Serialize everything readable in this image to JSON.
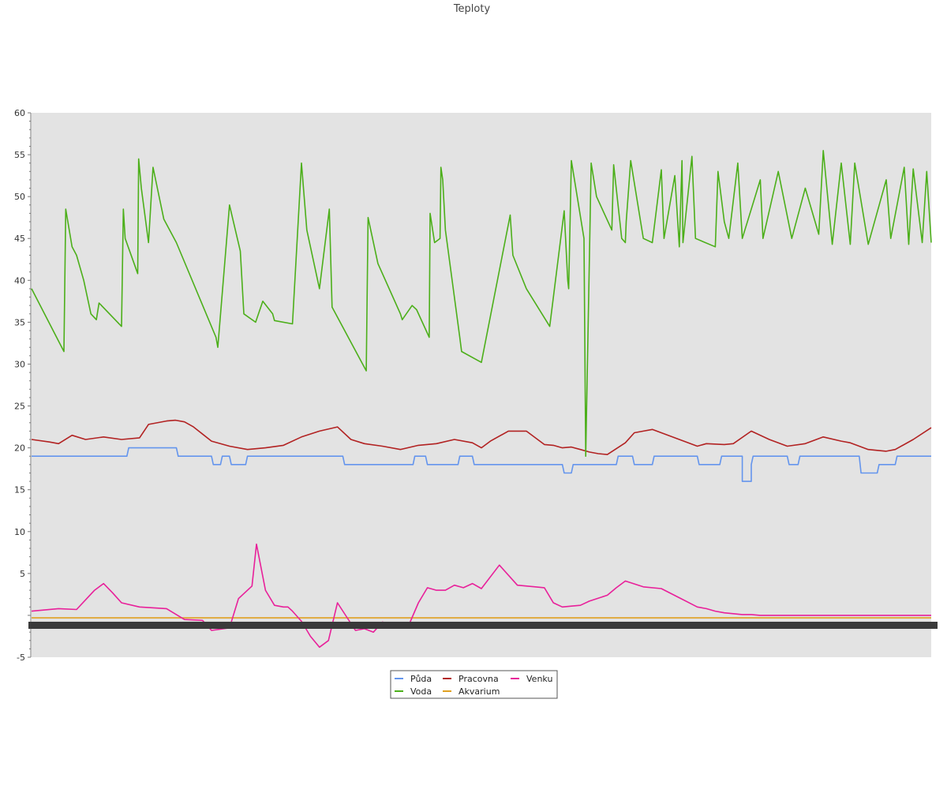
{
  "chart_data": {
    "type": "line",
    "title": "Teploty",
    "xlabel": "",
    "ylabel": "",
    "ylim": [
      -5,
      60
    ],
    "yticks": [
      -5,
      5,
      10,
      15,
      20,
      25,
      30,
      35,
      40,
      45,
      50,
      55,
      60
    ],
    "grid": false,
    "legend_position": "bottom",
    "background": "#e3e3e3",
    "series": [
      {
        "name": "Půda",
        "color": "#6495ed",
        "x": [
          0,
          0.106,
          0.108,
          0.161,
          0.163,
          0.2,
          0.202,
          0.21,
          0.212,
          0.22,
          0.222,
          0.238,
          0.24,
          0.346,
          0.348,
          0.424,
          0.426,
          0.438,
          0.44,
          0.474,
          0.476,
          0.49,
          0.492,
          0.59,
          0.592,
          0.6,
          0.602,
          0.65,
          0.652,
          0.668,
          0.67,
          0.69,
          0.692,
          0.74,
          0.742,
          0.765,
          0.767,
          0.788,
          0.79,
          0.79,
          0.8,
          0.8,
          0.802,
          0.84,
          0.842,
          0.852,
          0.854,
          0.92,
          0.922,
          0.94,
          0.942,
          0.96,
          0.962,
          1
        ],
        "y": [
          19,
          19,
          20,
          20,
          19,
          19,
          18,
          18,
          19,
          19,
          18,
          18,
          19,
          19,
          18,
          18,
          19,
          19,
          18,
          18,
          19,
          19,
          18,
          18,
          17,
          17,
          18,
          18,
          19,
          19,
          18,
          18,
          19,
          19,
          18,
          18,
          19,
          19,
          19,
          16,
          16,
          18,
          19,
          19,
          18,
          18,
          19,
          19,
          17,
          17,
          18,
          18,
          19,
          19
        ]
      },
      {
        "name": "Voda",
        "color": "#4caf1a",
        "x": [
          0,
          0.036,
          0.038,
          0.045,
          0.05,
          0.058,
          0.066,
          0.072,
          0.075,
          0.1,
          0.102,
          0.104,
          0.118,
          0.119,
          0.122,
          0.13,
          0.135,
          0.147,
          0.161,
          0.205,
          0.207,
          0.22,
          0.232,
          0.236,
          0.249,
          0.257,
          0.268,
          0.27,
          0.29,
          0.3,
          0.303,
          0.306,
          0.32,
          0.331,
          0.334,
          0.372,
          0.374,
          0.385,
          0.41,
          0.412,
          0.423,
          0.428,
          0.442,
          0.443,
          0.448,
          0.454,
          0.455,
          0.457,
          0.46,
          0.476,
          0.478,
          0.5,
          0.532,
          0.535,
          0.55,
          0.576,
          0.592,
          0.596,
          0.597,
          0.6,
          0.614,
          0.616,
          0.622,
          0.628,
          0.645,
          0.647,
          0.656,
          0.66,
          0.661,
          0.666,
          0.68,
          0.69,
          0.7,
          0.703,
          0.715,
          0.72,
          0.723,
          0.724,
          0.734,
          0.738,
          0.76,
          0.763,
          0.77,
          0.775,
          0.785,
          0.79,
          0.81,
          0.813,
          0.83,
          0.845,
          0.86,
          0.875,
          0.88,
          0.89,
          0.9,
          0.91,
          0.915,
          0.93,
          0.95,
          0.955,
          0.97,
          0.975,
          0.98,
          0.99,
          0.995,
          1
        ],
        "y": [
          39,
          31.5,
          48.5,
          44,
          43,
          40,
          36,
          35.3,
          37.3,
          34.5,
          48.5,
          45,
          40.8,
          54.5,
          51,
          44.5,
          53.5,
          47.3,
          44.5,
          33.2,
          32,
          49,
          43.5,
          36,
          35,
          37.5,
          36,
          35.2,
          34.8,
          54,
          50,
          46,
          39,
          48.5,
          36.8,
          29.2,
          47.5,
          42,
          36,
          35.3,
          37,
          36.5,
          33.2,
          48,
          44.5,
          45,
          53.5,
          52,
          46,
          33.2,
          31.5,
          30.2,
          47.8,
          43,
          39,
          34.5,
          48.3,
          40,
          39,
          54.3,
          45,
          19,
          54,
          50,
          46,
          53.8,
          45,
          44.5,
          47,
          54.3,
          45,
          44.5,
          53.2,
          45,
          52.5,
          44,
          54.3,
          44.5,
          54.8,
          45,
          44,
          53,
          47,
          45,
          54,
          45,
          52,
          45,
          53,
          45,
          51,
          45.5,
          55.5,
          44.3,
          54,
          44.3,
          54,
          44.3,
          52,
          45,
          53.5,
          44.3,
          53.3,
          44.5,
          53,
          44.5
        ]
      },
      {
        "name": "Pracovna",
        "color": "#b22222",
        "x": [
          0,
          0.02,
          0.03,
          0.045,
          0.06,
          0.08,
          0.1,
          0.12,
          0.13,
          0.15,
          0.16,
          0.17,
          0.18,
          0.2,
          0.22,
          0.24,
          0.26,
          0.28,
          0.3,
          0.32,
          0.34,
          0.355,
          0.37,
          0.39,
          0.41,
          0.43,
          0.45,
          0.47,
          0.49,
          0.5,
          0.51,
          0.53,
          0.55,
          0.57,
          0.58,
          0.59,
          0.6,
          0.61,
          0.62,
          0.63,
          0.64,
          0.66,
          0.67,
          0.68,
          0.69,
          0.7,
          0.72,
          0.74,
          0.75,
          0.77,
          0.78,
          0.8,
          0.82,
          0.84,
          0.86,
          0.88,
          0.9,
          0.91,
          0.93,
          0.95,
          0.96,
          0.98,
          1
        ],
        "y": [
          21,
          20.7,
          20.5,
          21.5,
          21,
          21.3,
          21,
          21.2,
          22.8,
          23.2,
          23.3,
          23.1,
          22.5,
          20.8,
          20.2,
          19.8,
          20,
          20.3,
          21.3,
          22,
          22.5,
          21,
          20.5,
          20.2,
          19.8,
          20.3,
          20.5,
          21,
          20.6,
          20,
          20.8,
          22,
          22,
          20.4,
          20.3,
          20,
          20.1,
          19.8,
          19.5,
          19.3,
          19.2,
          20.6,
          21.8,
          22,
          22.2,
          21.8,
          21,
          20.2,
          20.5,
          20.4,
          20.5,
          22,
          21,
          20.2,
          20.5,
          21.3,
          20.8,
          20.6,
          19.8,
          19.6,
          19.8,
          21,
          22.4
        ]
      },
      {
        "name": "Akvarium",
        "color": "#e0a020",
        "x": [
          0,
          1
        ],
        "y": [
          -0.3,
          -0.3
        ]
      },
      {
        "name": "Venku",
        "color": "#e8209a",
        "x": [
          0,
          0.03,
          0.05,
          0.07,
          0.08,
          0.09,
          0.1,
          0.12,
          0.15,
          0.17,
          0.19,
          0.2,
          0.22,
          0.23,
          0.24,
          0.245,
          0.25,
          0.26,
          0.27,
          0.28,
          0.285,
          0.29,
          0.3,
          0.31,
          0.32,
          0.33,
          0.34,
          0.36,
          0.37,
          0.38,
          0.39,
          0.4,
          0.41,
          0.42,
          0.43,
          0.44,
          0.45,
          0.46,
          0.47,
          0.48,
          0.49,
          0.5,
          0.52,
          0.54,
          0.56,
          0.57,
          0.58,
          0.59,
          0.6,
          0.61,
          0.62,
          0.64,
          0.65,
          0.66,
          0.68,
          0.7,
          0.72,
          0.74,
          0.75,
          0.76,
          0.77,
          0.78,
          0.79,
          0.8,
          0.81,
          0.82,
          0.84,
          0.86,
          0.87,
          0.88,
          0.89,
          0.9,
          0.92,
          0.93,
          0.94,
          0.95,
          0.96,
          0.97,
          0.98,
          0.99,
          1
        ],
        "y": [
          0.5,
          0.8,
          0.7,
          3,
          3.8,
          2.7,
          1.5,
          1,
          0.8,
          -0.5,
          -0.6,
          -1.8,
          -1.5,
          2,
          3,
          3.5,
          8.5,
          3,
          1.2,
          1,
          1,
          0.5,
          -0.7,
          -2.5,
          -3.8,
          -3,
          1.5,
          -1.8,
          -1.6,
          -2,
          -0.8,
          -1.1,
          -1.2,
          -1,
          1.5,
          3.3,
          3,
          3,
          3.6,
          3.3,
          3.8,
          3.2,
          6,
          3.6,
          3.4,
          3.3,
          1.5,
          1,
          1.1,
          1.2,
          1.7,
          2.4,
          3.3,
          4.1,
          3.4,
          3.2,
          2.1,
          1,
          0.8,
          0.5,
          0.3,
          0.2,
          0.1,
          0.1,
          0,
          0,
          0,
          0,
          0,
          0,
          0,
          0,
          0,
          0,
          0,
          0,
          0,
          0,
          0,
          0,
          0
        ]
      }
    ]
  }
}
